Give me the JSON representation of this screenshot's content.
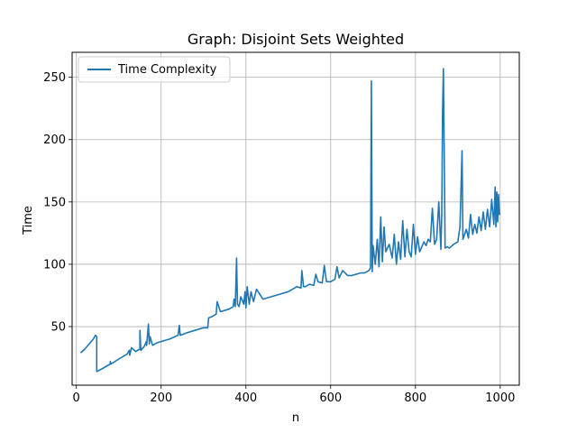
{
  "chart_data": {
    "type": "line",
    "title": "Graph: Disjoint Sets Weighted",
    "xlabel": "n",
    "ylabel": "Time",
    "xlim": [
      -10,
      1045
    ],
    "ylim": [
      3,
      270
    ],
    "xticks": [
      0,
      200,
      400,
      600,
      800,
      1000
    ],
    "yticks": [
      50,
      100,
      150,
      200,
      250
    ],
    "xtick_labels": [
      "0",
      "200",
      "400",
      "600",
      "800",
      "1000"
    ],
    "ytick_labels": [
      "50",
      "100",
      "150",
      "200",
      "250"
    ],
    "grid": true,
    "legend_position": "top-left",
    "series": [
      {
        "name": "Time Complexity",
        "color": "#1f77b4",
        "x": [
          10,
          20,
          30,
          40,
          45,
          48,
          48,
          60,
          80,
          80,
          82,
          100,
          120,
          125,
          126,
          130,
          140,
          150,
          150,
          152,
          160,
          165,
          166,
          170,
          172,
          174,
          178,
          180,
          190,
          200,
          220,
          240,
          243,
          245,
          260,
          280,
          300,
          310,
          312,
          320,
          330,
          332,
          340,
          360,
          370,
          372,
          375,
          378,
          380,
          384,
          388,
          395,
          398,
          400,
          403,
          408,
          412,
          418,
          425,
          440,
          460,
          480,
          500,
          510,
          520,
          530,
          532,
          536,
          540,
          550,
          560,
          565,
          570,
          580,
          585,
          590,
          595,
          600,
          610,
          615,
          620,
          628,
          640,
          650,
          660,
          670,
          680,
          690,
          694,
          696,
          698,
          700,
          705,
          710,
          714,
          718,
          722,
          726,
          730,
          738,
          745,
          750,
          755,
          760,
          765,
          770,
          775,
          780,
          785,
          790,
          795,
          800,
          805,
          810,
          815,
          820,
          825,
          830,
          835,
          840,
          845,
          850,
          855,
          860,
          862,
          864,
          866,
          868,
          870,
          875,
          880,
          890,
          900,
          905,
          910,
          912,
          915,
          920,
          925,
          930,
          935,
          940,
          945,
          950,
          955,
          960,
          965,
          970,
          975,
          980,
          985,
          988,
          990,
          992,
          994,
          996,
          998,
          1000
        ],
        "values": [
          29,
          32,
          36,
          40,
          43,
          42,
          14,
          16,
          20,
          22,
          20,
          24,
          28,
          31,
          27,
          33,
          30,
          32,
          47,
          31,
          34,
          38,
          35,
          52,
          36,
          42,
          37,
          35,
          37,
          38,
          40,
          43,
          51,
          43,
          45,
          47,
          49,
          49,
          57,
          58,
          60,
          70,
          62,
          64,
          66,
          72,
          66,
          105,
          68,
          66,
          74,
          68,
          78,
          65,
          82,
          68,
          78,
          70,
          80,
          72,
          74,
          76,
          78,
          80,
          82,
          81,
          95,
          82,
          82,
          84,
          83,
          92,
          86,
          85,
          99,
          86,
          86,
          86,
          88,
          98,
          89,
          95,
          91,
          91,
          92,
          93,
          93,
          95,
          97,
          247,
          94,
          115,
          100,
          120,
          98,
          138,
          102,
          130,
          110,
          116,
          105,
          124,
          100,
          118,
          104,
          135,
          106,
          128,
          110,
          106,
          132,
          108,
          122,
          110,
          114,
          118,
          115,
          120,
          118,
          145,
          116,
          120,
          150,
          112,
          140,
          222,
          257,
          183,
          113,
          114,
          113,
          116,
          118,
          130,
          191,
          120,
          123,
          128,
          121,
          140,
          124,
          132,
          125,
          138,
          127,
          142,
          128,
          144,
          130,
          152,
          132,
          162,
          130,
          158,
          134,
          156,
          140,
          141
        ]
      }
    ]
  }
}
